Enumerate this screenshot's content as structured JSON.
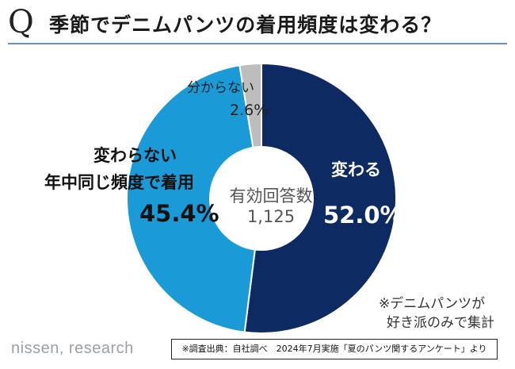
{
  "header": {
    "q_mark": "Q",
    "title": "季節でデニムパンツの着用頻度は変わる？"
  },
  "chart_data": {
    "type": "pie",
    "slices": [
      {
        "label": "変わる",
        "value": 52.0,
        "display": "52.0%",
        "color": "#0e2a63"
      },
      {
        "label_lines": [
          "変わらない",
          "年中同じ頻度で着用"
        ],
        "value": 45.4,
        "display": "45.4%",
        "color": "#1a9ad6"
      },
      {
        "label": "分からない",
        "value": 2.6,
        "display": "2.6%",
        "color": "#bdbdbd"
      }
    ],
    "center": {
      "title": "有効回答数",
      "value": "1,125"
    },
    "start": "12 o'clock",
    "direction": "clockwise"
  },
  "notes": [
    "※デニムパンツが",
    "好き派のみで集計"
  ],
  "footer": {
    "brand": "nissen, research",
    "source": "※調査出典：自社調べ　2024年7月実施「夏のパンツ関するアンケート」より"
  }
}
